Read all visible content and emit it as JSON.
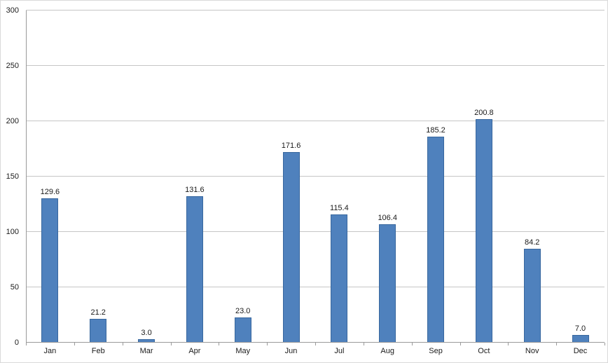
{
  "chart_data": {
    "type": "bar",
    "title": "",
    "xlabel": "",
    "ylabel": "",
    "categories": [
      "Jan",
      "Feb",
      "Mar",
      "Apr",
      "May",
      "Jun",
      "Jul",
      "Aug",
      "Sep",
      "Oct",
      "Nov",
      "Dec"
    ],
    "values": [
      129.6,
      21.2,
      3.0,
      131.6,
      23.0,
      171.6,
      115.4,
      106.4,
      185.2,
      200.8,
      84.2,
      7.0
    ],
    "value_labels": [
      "129.6",
      "21.2",
      "3.0",
      "131.6",
      "23.0",
      "171.6",
      "115.4",
      "106.4",
      "185.2",
      "200.8",
      "84.2",
      "7.0"
    ],
    "ylim": [
      0,
      300
    ],
    "ytick_interval": 50,
    "ytick_labels": [
      "0",
      "50",
      "100",
      "150",
      "200",
      "250",
      "300"
    ],
    "grid": true,
    "legend_position": "none",
    "colors": {
      "bar_fill": "#4f81bd",
      "bar_border": "#38679e",
      "gridline": "#c6c6c6",
      "axis": "#9a9a9a",
      "text": "#1a1a1a",
      "background": "#ffffff"
    }
  }
}
